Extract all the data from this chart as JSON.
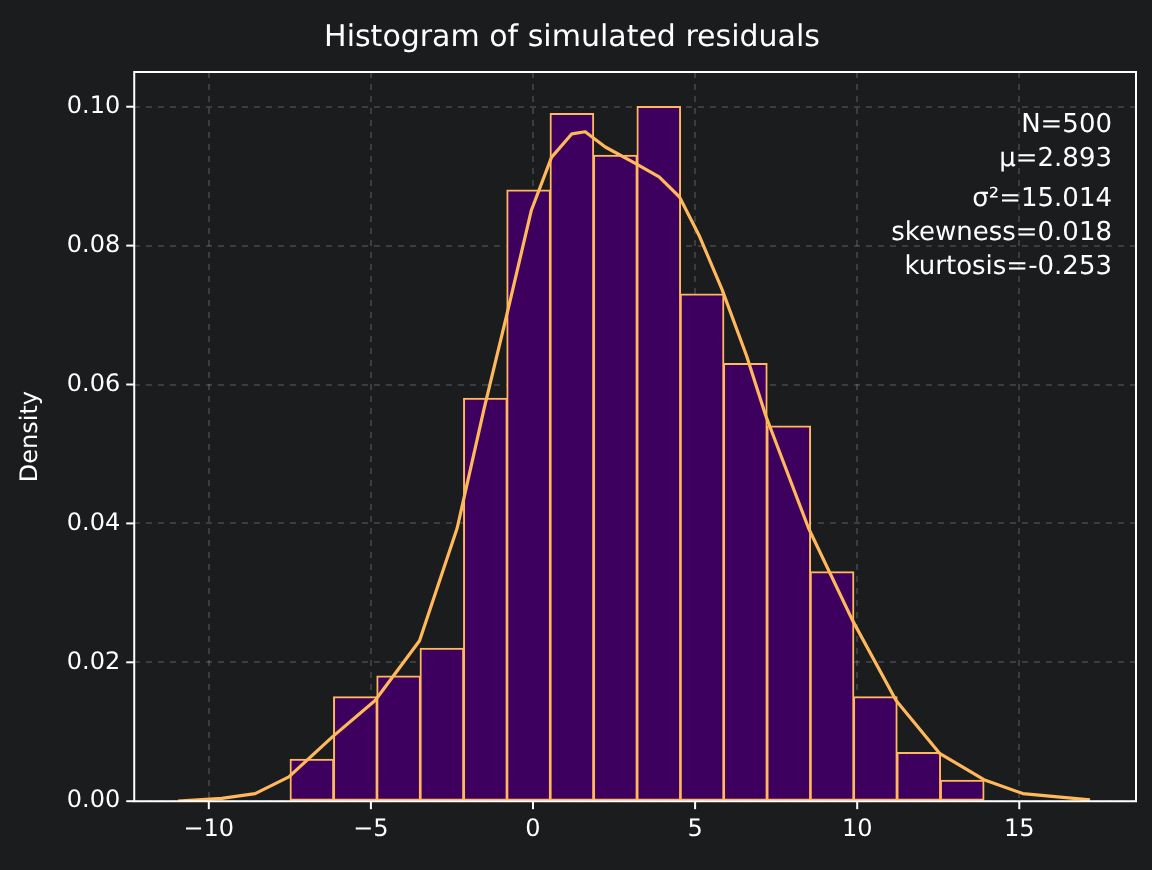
{
  "chart_data": {
    "type": "histogram",
    "title": "Histogram of simulated residuals",
    "ylabel": "Density",
    "bins": [
      -7.49,
      -6.15,
      -4.81,
      -3.48,
      -2.14,
      -0.8,
      0.53,
      1.87,
      3.21,
      4.55,
      5.88,
      7.22,
      8.56,
      9.89,
      11.23,
      12.57,
      13.91
    ],
    "series": [
      {
        "color": "#3d005e",
        "values": [
          0.006,
          0.015,
          0.018,
          0.022,
          0.058,
          0.088,
          0.099,
          0.093,
          0.1,
          0.073,
          0.063,
          0.054,
          0.033,
          0.015,
          0.007,
          0.003
        ]
      },
      {
        "type": "line",
        "color": "#ffb85c",
        "x": [
          -10.95,
          -9.6,
          -8.57,
          -7.53,
          -6.18,
          -4.87,
          -3.5,
          -2.34,
          -1.51,
          -0.82,
          -0.05,
          0.57,
          1.2,
          1.61,
          2.23,
          3.17,
          3.89,
          4.52,
          5.14,
          5.83,
          6.59,
          7.18,
          8.5,
          9.86,
          11.2,
          12.54,
          13.91,
          15.11,
          17.18
        ],
        "values": [
          0.0,
          0.0004,
          0.0011,
          0.0035,
          0.0093,
          0.0145,
          0.0231,
          0.0393,
          0.0565,
          0.0698,
          0.0851,
          0.0927,
          0.0961,
          0.0964,
          0.0942,
          0.0918,
          0.0899,
          0.087,
          0.0813,
          0.0737,
          0.0641,
          0.0555,
          0.0393,
          0.026,
          0.0145,
          0.0069,
          0.0031,
          0.0011,
          0.0002
        ]
      }
    ],
    "annotations": [
      "N=500",
      "μ=2.893",
      "σ²=15.014",
      "skewness=0.018",
      "kurtosis=-0.253"
    ],
    "xlim": [
      -12.3,
      18.6
    ],
    "xticks": [
      {
        "value": -10,
        "label": "−10"
      },
      {
        "value": -5,
        "label": "−5"
      },
      0,
      5,
      10,
      15
    ],
    "ylim": [
      0,
      0.105
    ],
    "yticks": [
      {
        "value": 0,
        "label": "0.00"
      },
      {
        "value": 0.02,
        "label": "0.02"
      },
      {
        "value": 0.04,
        "label": "0.04"
      },
      {
        "value": 0.06,
        "label": "0.06"
      },
      {
        "value": 0.08,
        "label": "0.08"
      },
      {
        "value": 0.1,
        "label": "0.10"
      }
    ],
    "grid": true,
    "legend": false
  }
}
